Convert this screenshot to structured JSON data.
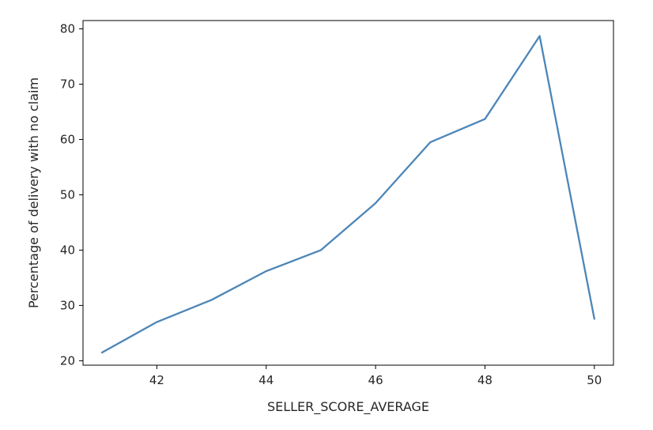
{
  "chart_data": {
    "type": "line",
    "title": "",
    "xlabel": "SELLER_SCORE_AVERAGE",
    "ylabel": "Percentage of delivery with no claim",
    "xlim": [
      40.65,
      50.35
    ],
    "ylim": [
      19.2,
      81.5
    ],
    "x_ticks": [
      42,
      44,
      46,
      48,
      50
    ],
    "y_ticks": [
      20,
      30,
      40,
      50,
      60,
      70,
      80
    ],
    "grid": false,
    "legend": "none",
    "series": [
      {
        "color": "#4c86b8",
        "x": [
          41,
          42,
          43,
          44,
          45,
          46,
          47,
          48,
          49,
          50
        ],
        "y": [
          21.5,
          27.0,
          31.0,
          36.2,
          40.0,
          48.5,
          59.5,
          63.7,
          78.7,
          27.6
        ]
      }
    ]
  }
}
